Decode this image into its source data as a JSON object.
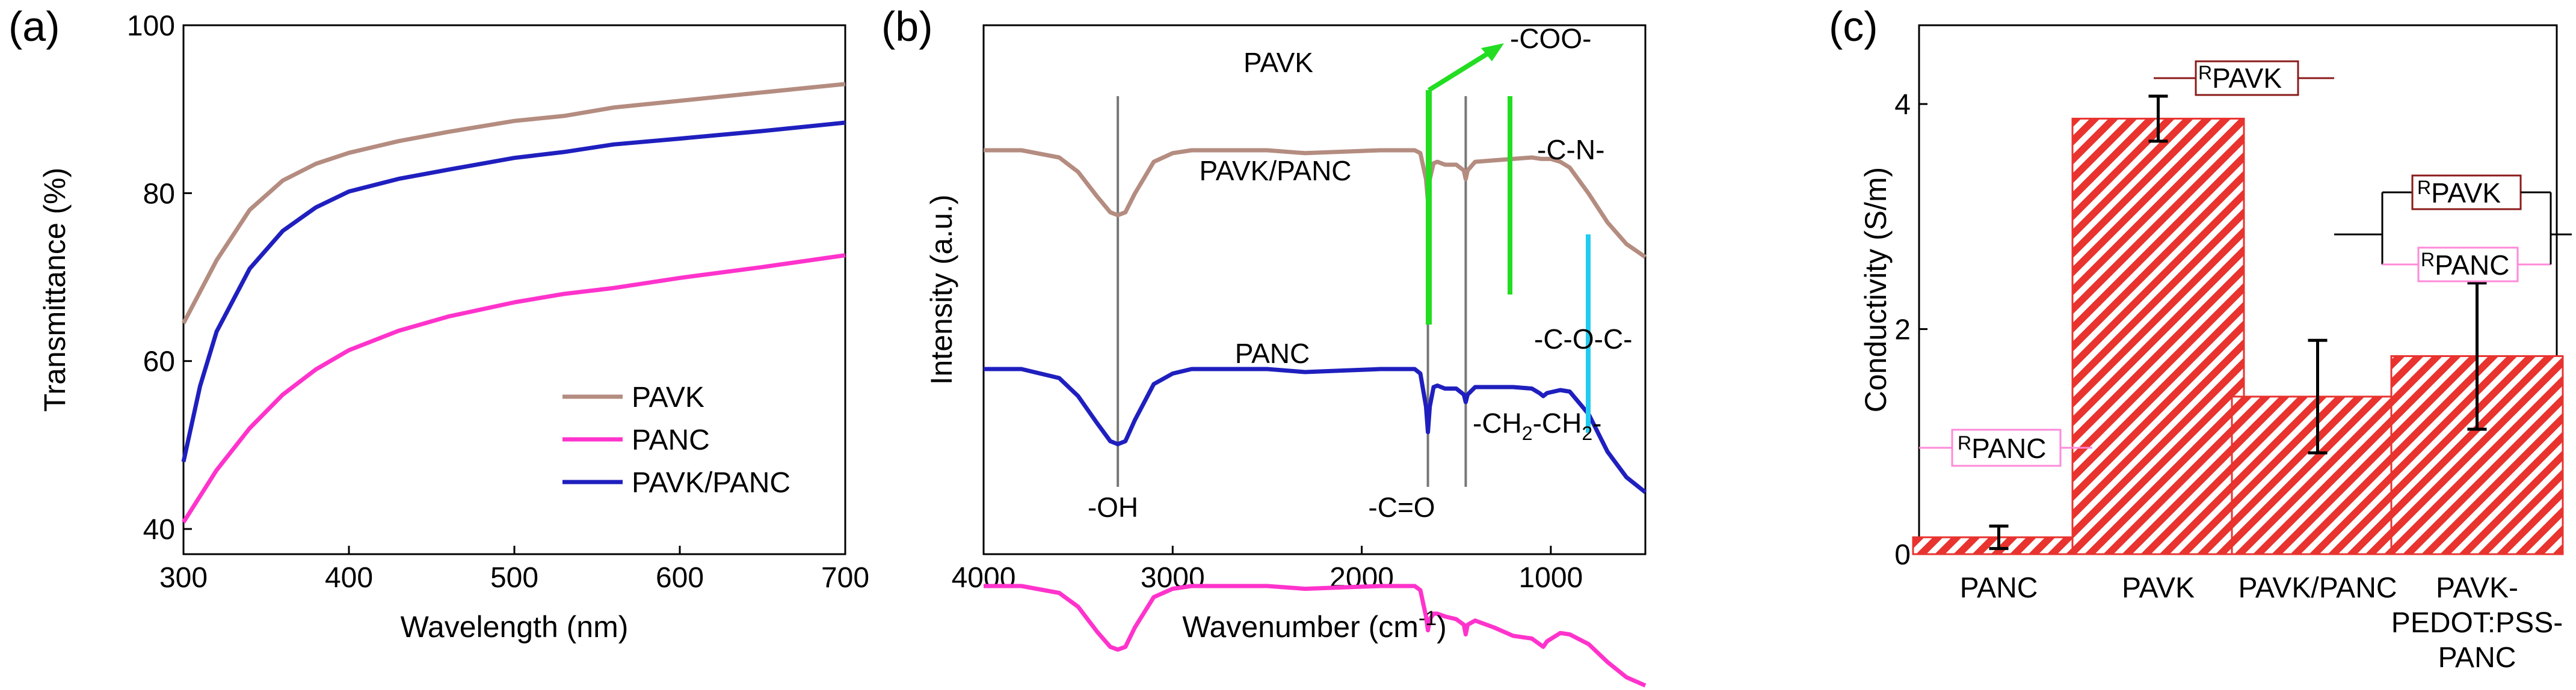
{
  "chart_data": [
    {
      "panel": "(a)",
      "type": "line",
      "xlabel": "Wavelength (nm)",
      "ylabel": "Transmittance (%)",
      "xlim": [
        300,
        700
      ],
      "ylim": [
        37,
        100
      ],
      "xticks": [
        300,
        400,
        500,
        600,
        700
      ],
      "yticks": [
        40,
        60,
        80,
        100
      ],
      "legend_position": "bottom-right",
      "series": [
        {
          "name": "PAVK",
          "color": "#b48c80",
          "x": [
            300,
            320,
            340,
            360,
            380,
            400,
            430,
            460,
            500,
            530,
            560,
            600,
            650,
            700
          ],
          "y": [
            64.5,
            72,
            78,
            81.5,
            83.5,
            84.8,
            86.2,
            87.3,
            88.6,
            89.2,
            90.2,
            91.0,
            92.0,
            93.0
          ]
        },
        {
          "name": "PANC",
          "color": "#ff33cc",
          "x": [
            300,
            320,
            340,
            360,
            380,
            400,
            430,
            460,
            500,
            530,
            560,
            600,
            650,
            700
          ],
          "y": [
            40.8,
            47,
            52,
            56,
            59,
            61.3,
            63.6,
            65.3,
            67.0,
            68.0,
            68.7,
            69.9,
            71.2,
            72.6
          ]
        },
        {
          "name": "PAVK/PANC",
          "color": "#1f1fbf",
          "x": [
            300,
            310,
            320,
            340,
            360,
            380,
            400,
            430,
            460,
            500,
            530,
            560,
            600,
            650,
            700
          ],
          "y": [
            48,
            57,
            63.5,
            71,
            75.5,
            78.3,
            80.2,
            81.7,
            82.8,
            84.2,
            84.9,
            85.8,
            86.5,
            87.4,
            88.4
          ]
        }
      ]
    },
    {
      "panel": "(b)",
      "type": "line",
      "xlabel_main": "Wavenumber (cm",
      "xlabel_sup": "-1",
      "xlabel_end": ")",
      "ylabel": "Intensity (a.u.)",
      "xlim": [
        4000,
        500
      ],
      "xticks": [
        4000,
        3000,
        2000,
        1000
      ],
      "labels": {
        "top": "PAVK",
        "middle": "PAVK/PANC",
        "bottom": "PANC"
      },
      "annotations": {
        "oh": "-OH",
        "co": "-C=O",
        "ch2": "-CH",
        "ch2_sub": "2",
        "ch2_mid": "-CH",
        "ch2_sub2": "2",
        "ch2_end": "-",
        "coo": "-COO-",
        "cn": "-C-N-",
        "coc": "-C-O-C-"
      },
      "reference_lines_cm": [
        3290,
        1650,
        1450
      ],
      "series": [
        {
          "name": "PAVK",
          "color": "#b48c80",
          "x": [
            4000,
            3800,
            3600,
            3500,
            3400,
            3330,
            3290,
            3250,
            3200,
            3100,
            3000,
            2900,
            2700,
            2500,
            2300,
            2100,
            1900,
            1800,
            1720,
            1690,
            1660,
            1650,
            1640,
            1620,
            1600,
            1560,
            1500,
            1460,
            1450,
            1440,
            1400,
            1300,
            1200,
            1100,
            1050,
            1000,
            950,
            900,
            800,
            700,
            600,
            500
          ],
          "y": [
            0.0,
            0.0,
            0.05,
            0.15,
            0.32,
            0.43,
            0.45,
            0.43,
            0.3,
            0.08,
            0.02,
            0.0,
            0.0,
            0.0,
            0.02,
            0.01,
            0.0,
            0.0,
            0.0,
            0.02,
            0.2,
            0.35,
            0.2,
            0.09,
            0.08,
            0.1,
            0.1,
            0.14,
            0.2,
            0.14,
            0.08,
            0.07,
            0.06,
            0.05,
            0.06,
            0.06,
            0.08,
            0.12,
            0.3,
            0.5,
            0.65,
            0.74
          ]
        },
        {
          "name": "PAVK/PANC",
          "color": "#1f1fbf",
          "x": [
            4000,
            3800,
            3600,
            3500,
            3400,
            3330,
            3290,
            3250,
            3200,
            3100,
            3000,
            2900,
            2700,
            2500,
            2300,
            2100,
            1900,
            1800,
            1720,
            1690,
            1660,
            1650,
            1640,
            1620,
            1600,
            1560,
            1500,
            1460,
            1450,
            1440,
            1400,
            1300,
            1200,
            1100,
            1060,
            1040,
            1020,
            950,
            900,
            800,
            700,
            600,
            500
          ],
          "y": [
            0.0,
            0.0,
            0.06,
            0.18,
            0.36,
            0.48,
            0.5,
            0.48,
            0.34,
            0.1,
            0.03,
            0.0,
            0.0,
            0.0,
            0.02,
            0.01,
            0.0,
            0.0,
            0.0,
            0.03,
            0.25,
            0.42,
            0.25,
            0.12,
            0.11,
            0.13,
            0.13,
            0.17,
            0.22,
            0.17,
            0.12,
            0.12,
            0.12,
            0.13,
            0.16,
            0.18,
            0.16,
            0.14,
            0.15,
            0.3,
            0.55,
            0.72,
            0.82
          ]
        },
        {
          "name": "PANC",
          "color": "#ff33cc",
          "x": [
            4000,
            3800,
            3600,
            3500,
            3400,
            3330,
            3290,
            3250,
            3200,
            3100,
            3000,
            2900,
            2700,
            2500,
            2300,
            2100,
            1900,
            1800,
            1720,
            1690,
            1660,
            1650,
            1640,
            1620,
            1600,
            1560,
            1500,
            1460,
            1450,
            1440,
            1400,
            1300,
            1200,
            1100,
            1060,
            1040,
            1020,
            950,
            900,
            800,
            700,
            600,
            500
          ],
          "y": [
            0.0,
            0.0,
            0.05,
            0.15,
            0.33,
            0.44,
            0.46,
            0.44,
            0.3,
            0.08,
            0.02,
            0.0,
            0.0,
            0.0,
            0.02,
            0.01,
            0.0,
            0.0,
            0.0,
            0.03,
            0.22,
            0.32,
            0.24,
            0.2,
            0.2,
            0.22,
            0.24,
            0.28,
            0.35,
            0.28,
            0.25,
            0.3,
            0.36,
            0.38,
            0.42,
            0.44,
            0.4,
            0.34,
            0.35,
            0.42,
            0.55,
            0.66,
            0.72
          ]
        }
      ]
    },
    {
      "panel": "(c)",
      "type": "bar",
      "ylabel": "Conductivity (S/m)",
      "ylim": [
        0,
        4.7
      ],
      "yticks": [
        0,
        2,
        4
      ],
      "categories": [
        "PANC",
        "PAVK",
        "PAVK/PANC",
        "PAVK-\nPEDOT:PSS-\nPANC"
      ],
      "category_lines": [
        [
          "PANC"
        ],
        [
          "PAVK"
        ],
        [
          "PAVK/PANC"
        ],
        [
          "PAVK-",
          "PEDOT:PSS-",
          "PANC"
        ]
      ],
      "values": [
        0.15,
        3.87,
        1.4,
        1.76
      ],
      "errors": [
        0.1,
        0.2,
        0.5,
        0.65
      ],
      "bar_color": "#e8332f",
      "circuit_labels": {
        "r_prefix": "R",
        "panc": "PANC",
        "pavk": "PAVK"
      }
    }
  ],
  "colors": {
    "pavk": "#b48c80",
    "panc": "#ff33cc",
    "blend": "#1f1fbf",
    "green": "#22dd22",
    "cyan": "#22ccee",
    "grey": "#777777",
    "bar": "#e8332f",
    "pink_box": "#ff8ad8",
    "dark_red": "#8b1a1a"
  }
}
